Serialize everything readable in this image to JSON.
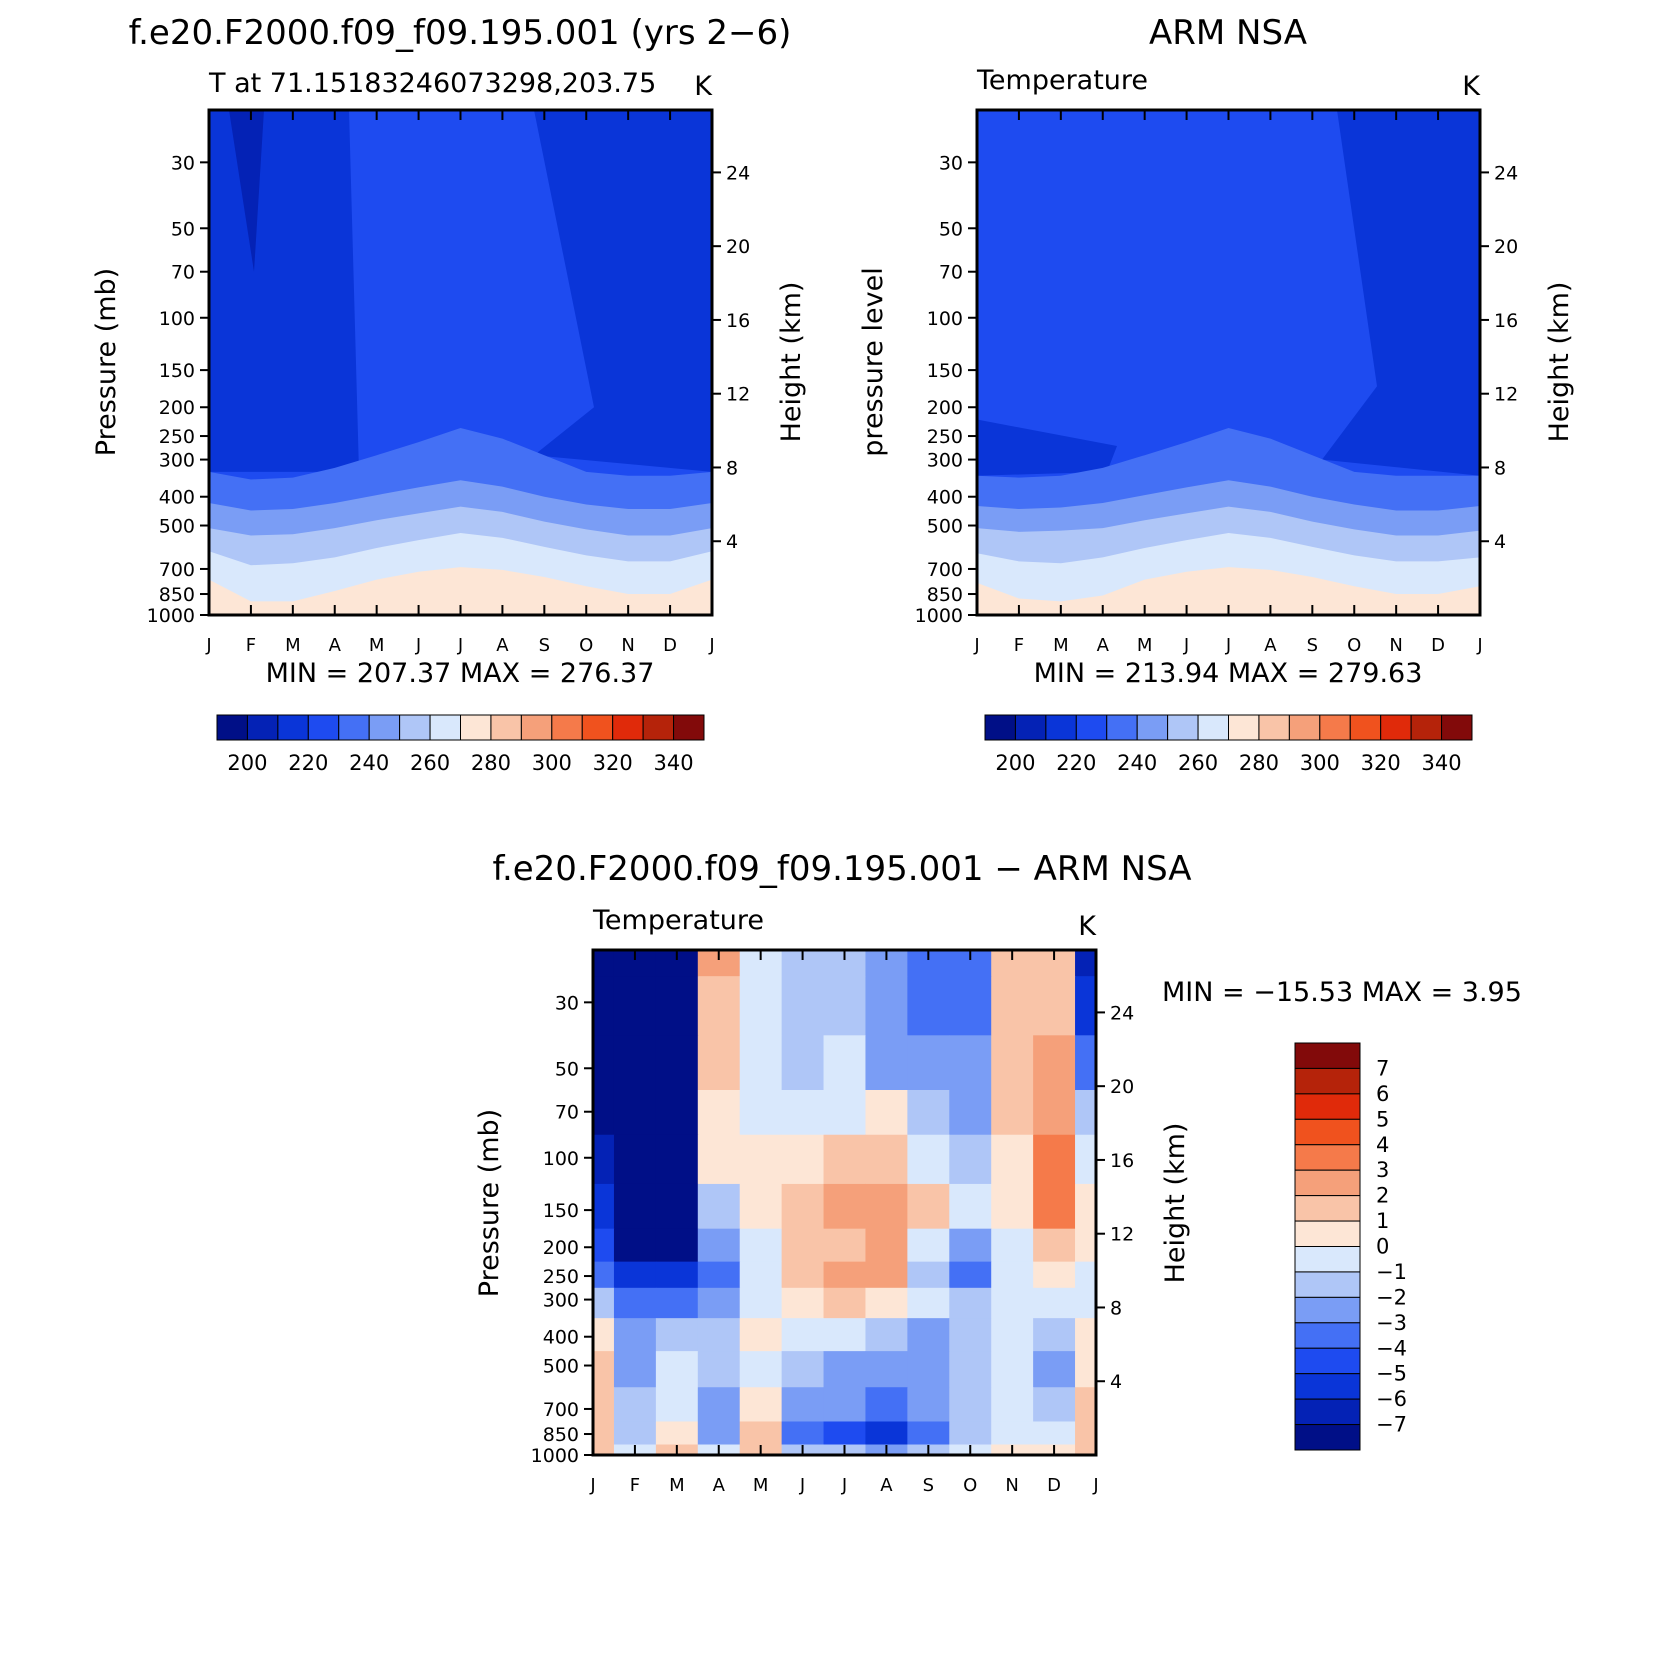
{
  "figure": {
    "left_title": "f.e20.F2000.f09_f09.195.001 (yrs 2−6)",
    "right_title": "ARM NSA",
    "diff_title": "f.e20.F2000.f09_f09.195.001 − ARM NSA"
  },
  "colors": {
    "abs_levels": [
      "#000f87",
      "#0422b5",
      "#0a35d8",
      "#1e4bf0",
      "#4470f5",
      "#7a9df5",
      "#afc6f7",
      "#d9e8fc",
      "#fde6d6",
      "#f9c4a8",
      "#f5a07a",
      "#f57a4a",
      "#f0521e",
      "#e02a0a",
      "#b5230a",
      "#820a0a"
    ],
    "diff_levels": [
      "#000f87",
      "#0422b5",
      "#0a35d8",
      "#1e4bf0",
      "#4470f5",
      "#7a9df5",
      "#afc6f7",
      "#d9e8fc",
      "#fde6d6",
      "#f9c4a8",
      "#f5a07a",
      "#f57a4a",
      "#f0521e",
      "#e02a0a",
      "#b5230a",
      "#820a0a"
    ]
  },
  "chart_data": [
    {
      "type": "heatmap",
      "id": "model",
      "left_string": "T at 71.15183246073298,203.75",
      "right_string": "K",
      "ylabel": "Pressure (mb)",
      "y2label": "Height (km)",
      "min_max": "MIN =  207.37  MAX =  276.37",
      "x": [
        "J",
        "F",
        "M",
        "A",
        "M",
        "J",
        "J",
        "A",
        "S",
        "O",
        "N",
        "D",
        "J"
      ],
      "y_ticks": [
        "30",
        "50",
        "70",
        "100",
        "150",
        "200",
        "250",
        "300",
        "400",
        "500",
        "700",
        "850",
        "1000"
      ],
      "y_range": [
        1000,
        20
      ],
      "y2_ticks": [
        "4",
        "8",
        "12",
        "16",
        "20",
        "24"
      ],
      "colorbar_labels": [
        "200",
        "220",
        "240",
        "260",
        "280",
        "300",
        "320",
        "340"
      ],
      "tropopause_level_hpa": [
        330,
        350,
        345,
        320,
        290,
        262,
        235,
        255,
        290,
        330,
        340,
        340,
        330
      ],
      "isotherm_levels_hpa": [
        [
          330,
          350,
          345,
          320,
          290,
          262,
          235,
          255,
          290,
          330,
          340,
          340,
          330
        ],
        [
          420,
          445,
          440,
          420,
          395,
          372,
          352,
          370,
          400,
          425,
          440,
          440,
          420
        ],
        [
          510,
          540,
          535,
          510,
          480,
          455,
          432,
          450,
          485,
          515,
          540,
          540,
          510
        ],
        [
          610,
          680,
          670,
          640,
          595,
          560,
          530,
          550,
          590,
          630,
          660,
          660,
          610
        ],
        [
          760,
          900,
          900,
          830,
          760,
          715,
          690,
          705,
          745,
          800,
          850,
          850,
          760
        ],
        [
          1000,
          1000,
          1000,
          1000,
          900,
          860,
          840,
          850,
          900,
          960,
          1000,
          1000,
          1000
        ]
      ],
      "stratosphere_dark_months": [
        0,
        1,
        2,
        10,
        11,
        12
      ]
    },
    {
      "type": "heatmap",
      "id": "obs",
      "left_string": "Temperature",
      "right_string": "K",
      "ylabel": "pressure level",
      "y2label": "Height (km)",
      "min_max": "MIN =  213.94  MAX =  279.63",
      "x": [
        "J",
        "F",
        "M",
        "A",
        "M",
        "J",
        "J",
        "A",
        "S",
        "O",
        "N",
        "D",
        "J"
      ],
      "y_ticks": [
        "30",
        "50",
        "70",
        "100",
        "150",
        "200",
        "250",
        "300",
        "400",
        "500",
        "700",
        "850",
        "1000"
      ],
      "y_range": [
        1000,
        20
      ],
      "y2_ticks": [
        "4",
        "8",
        "12",
        "16",
        "20",
        "24"
      ],
      "colorbar_labels": [
        "200",
        "220",
        "240",
        "260",
        "280",
        "300",
        "320",
        "340"
      ],
      "isotherm_levels_hpa": [
        [
          340,
          345,
          340,
          320,
          290,
          262,
          235,
          255,
          290,
          330,
          340,
          340,
          340
        ],
        [
          430,
          440,
          435,
          420,
          395,
          372,
          352,
          370,
          400,
          425,
          445,
          445,
          430
        ],
        [
          510,
          525,
          520,
          510,
          480,
          455,
          432,
          450,
          485,
          515,
          540,
          540,
          520
        ],
        [
          620,
          660,
          670,
          640,
          595,
          560,
          530,
          550,
          590,
          630,
          660,
          660,
          640
        ],
        [
          780,
          880,
          900,
          860,
          760,
          715,
          690,
          705,
          745,
          800,
          850,
          850,
          800
        ],
        [
          1000,
          1000,
          1000,
          1000,
          940,
          880,
          860,
          870,
          920,
          1000,
          1000,
          1000,
          1000
        ]
      ]
    },
    {
      "type": "heatmap",
      "id": "diff",
      "left_string": "Temperature",
      "right_string": "K",
      "ylabel": "Pressure (mb)",
      "y2label": "Height (km)",
      "min_max": "MIN = −15.53  MAX =     3.95",
      "x": [
        "J",
        "F",
        "M",
        "A",
        "M",
        "J",
        "J",
        "A",
        "S",
        "O",
        "N",
        "D",
        "J"
      ],
      "y_ticks": [
        "30",
        "50",
        "70",
        "100",
        "150",
        "200",
        "250",
        "300",
        "400",
        "500",
        "700",
        "850",
        "1000"
      ],
      "y_range": [
        1000,
        20
      ],
      "y2_ticks": [
        "4",
        "8",
        "12",
        "16",
        "20",
        "24"
      ],
      "colorbar_labels": [
        "7",
        "6",
        "5",
        "4",
        "3",
        "2",
        "1",
        "0",
        "−1",
        "−2",
        "−3",
        "−4",
        "−5",
        "−6",
        "−7"
      ],
      "levels_hpa": [
        20,
        30,
        50,
        70,
        100,
        150,
        200,
        250,
        300,
        400,
        500,
        700,
        850,
        1000
      ],
      "values": [
        [
          -14,
          -14,
          -12,
          2,
          -1,
          -2,
          -2,
          -3,
          -4,
          -4,
          1,
          1,
          -7
        ],
        [
          -14,
          -14,
          -12,
          1,
          -1,
          -2,
          -2,
          -3,
          -4,
          -4,
          1,
          1,
          -6
        ],
        [
          -10,
          -14,
          -12,
          1,
          -1,
          -2,
          -1,
          -3,
          -3,
          -3,
          1,
          2,
          -4
        ],
        [
          -8,
          -14,
          -12,
          0,
          -1,
          -1,
          -1,
          0,
          -2,
          -3,
          1,
          2,
          -2
        ],
        [
          -7,
          -14,
          -12,
          0,
          0,
          0,
          1,
          1,
          -1,
          -2,
          0,
          3,
          -1
        ],
        [
          -6,
          -14,
          -12,
          -2,
          0,
          1,
          2,
          2,
          1,
          -1,
          0,
          3,
          0
        ],
        [
          -5,
          -14,
          -12,
          -3,
          -1,
          1,
          1,
          2,
          -1,
          -3,
          -1,
          1,
          0
        ],
        [
          -4,
          -6,
          -6,
          -4,
          -1,
          1,
          2,
          2,
          -2,
          -4,
          -1,
          0,
          -1
        ],
        [
          -2,
          -4,
          -4,
          -3,
          -1,
          0,
          1,
          0,
          -1,
          -2,
          -1,
          -1,
          -1
        ],
        [
          0,
          -3,
          -2,
          -2,
          0,
          -1,
          -1,
          -2,
          -3,
          -2,
          -1,
          -2,
          0
        ],
        [
          1,
          -3,
          -1,
          -2,
          -1,
          -2,
          -3,
          -3,
          -3,
          -2,
          -1,
          -3,
          0
        ],
        [
          1,
          -2,
          -1,
          -3,
          0,
          -3,
          -3,
          -4,
          -3,
          -2,
          -1,
          -2,
          1
        ],
        [
          1,
          -2,
          0,
          -3,
          1,
          -4,
          -5,
          -6,
          -4,
          -2,
          -1,
          -1,
          1
        ],
        [
          1,
          -1,
          1,
          -1,
          1,
          -2,
          -2,
          -3,
          -2,
          -1,
          0,
          0,
          1
        ]
      ]
    }
  ]
}
